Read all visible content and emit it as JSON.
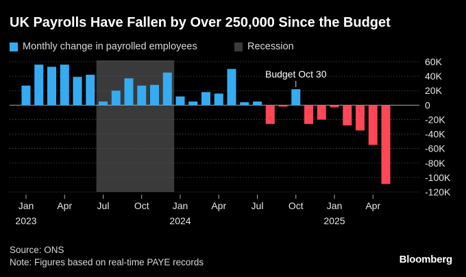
{
  "title": "UK Payrolls Have Fallen by Over 250,000 Since the Budget",
  "legend": {
    "payroll_label": "Monthly change in payrolled employees",
    "recession_label": "Recession"
  },
  "source": "Source: ONS",
  "note": "Note: Figures based on real-time PAYE records",
  "brand": "Bloomberg",
  "colors": {
    "positive": "#35abf2",
    "negative": "#ff4757",
    "recession": "#3a3a3a",
    "grid": "#555555",
    "text": "#e6e6e6"
  },
  "chart_data": {
    "type": "bar",
    "xlabel": "",
    "ylabel": "",
    "ylim": [
      -120000,
      60000
    ],
    "yticks": [
      60000,
      40000,
      20000,
      0,
      -20000,
      -40000,
      -60000,
      -80000,
      -100000,
      -120000
    ],
    "ytick_labels": [
      "60K",
      "40K",
      "20K",
      "0",
      "-20K",
      "-40K",
      "-60K",
      "-80K",
      "-100K",
      "-120K"
    ],
    "grid": true,
    "categories": [
      "2023-01",
      "2023-02",
      "2023-03",
      "2023-04",
      "2023-05",
      "2023-06",
      "2023-07",
      "2023-08",
      "2023-09",
      "2023-10",
      "2023-11",
      "2023-12",
      "2024-01",
      "2024-02",
      "2024-03",
      "2024-04",
      "2024-05",
      "2024-06",
      "2024-07",
      "2024-08",
      "2024-09",
      "2024-10",
      "2024-11",
      "2024-12",
      "2025-01",
      "2025-02",
      "2025-03",
      "2025-04",
      "2025-05"
    ],
    "series": [
      {
        "name": "Monthly change in payrolled employees",
        "values": [
          27000,
          56000,
          53000,
          56000,
          39000,
          42000,
          5000,
          20000,
          37000,
          27000,
          28000,
          45000,
          12000,
          5000,
          18000,
          16000,
          50000,
          4000,
          5000,
          -26000,
          -2000,
          22000,
          -26000,
          -20000,
          -3000,
          -28000,
          -35000,
          -55000,
          -109000
        ]
      }
    ],
    "recession_months": [
      "2023-07",
      "2023-12"
    ],
    "x_tick_labels": [
      {
        "month": "2023-01",
        "label": "Jan",
        "year": "2023"
      },
      {
        "month": "2023-04",
        "label": "Apr",
        "year": ""
      },
      {
        "month": "2023-07",
        "label": "Jul",
        "year": ""
      },
      {
        "month": "2023-10",
        "label": "Oct",
        "year": ""
      },
      {
        "month": "2024-01",
        "label": "Jan",
        "year": "2024"
      },
      {
        "month": "2024-04",
        "label": "Apr",
        "year": ""
      },
      {
        "month": "2024-07",
        "label": "Jul",
        "year": ""
      },
      {
        "month": "2024-10",
        "label": "Oct",
        "year": ""
      },
      {
        "month": "2025-01",
        "label": "Jan",
        "year": "2025"
      },
      {
        "month": "2025-04",
        "label": "Apr",
        "year": ""
      }
    ],
    "annotations": [
      {
        "text": "Budget Oct 30",
        "month": "2024-10"
      }
    ],
    "budget_month": "2024-10"
  }
}
